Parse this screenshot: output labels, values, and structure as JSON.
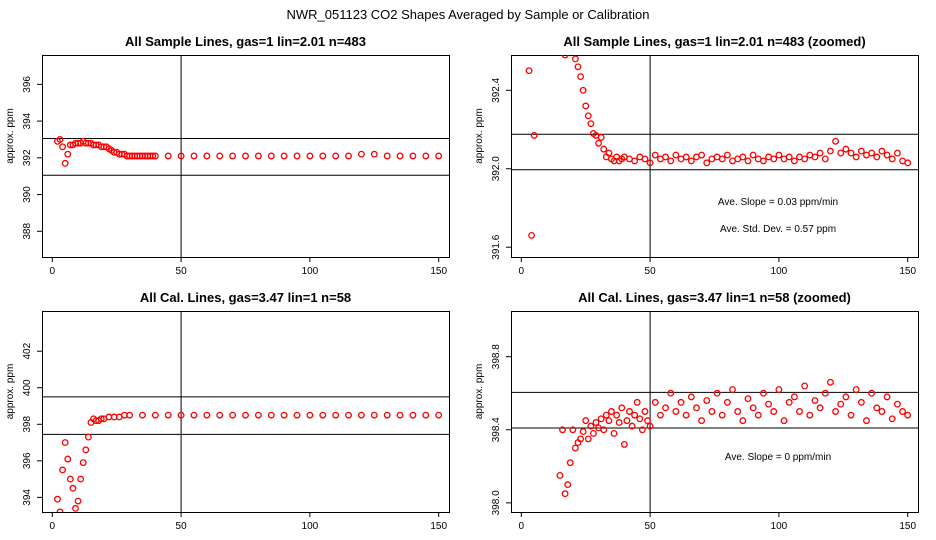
{
  "figure_title": "NWR_051123  CO2 Shapes Averaged by Sample or Calibration",
  "chart_data": [
    {
      "type": "scatter",
      "title": "All Sample Lines, gas=1 lin=2.01 n=483",
      "xlabel": "",
      "ylabel": "approx. ppm",
      "xlim": [
        -4,
        154
      ],
      "ylim": [
        386.6,
        397.6
      ],
      "xticks": [
        0,
        50,
        100,
        150
      ],
      "yticks": [
        388,
        390,
        392,
        394,
        396
      ],
      "vline": 50,
      "hlines": [
        391.05,
        393.05
      ],
      "annotations": [],
      "series": [
        {
          "color": "#ff0000",
          "x": [
            2,
            3,
            4,
            5,
            6,
            7,
            8,
            9,
            10,
            11,
            12,
            13,
            14,
            15,
            16,
            17,
            18,
            19,
            20,
            21,
            22,
            23,
            24,
            25,
            26,
            27,
            28,
            29,
            30,
            31,
            32,
            33,
            34,
            35,
            36,
            37,
            38,
            39,
            40,
            45,
            50,
            55,
            60,
            65,
            70,
            75,
            80,
            85,
            90,
            95,
            100,
            105,
            110,
            115,
            120,
            125,
            130,
            135,
            140,
            145,
            150
          ],
          "y": [
            392.9,
            393.0,
            392.6,
            391.7,
            392.2,
            392.7,
            392.7,
            392.8,
            392.8,
            392.8,
            392.9,
            392.8,
            392.8,
            392.8,
            392.7,
            392.7,
            392.7,
            392.6,
            392.6,
            392.6,
            392.5,
            392.4,
            392.3,
            392.3,
            392.2,
            392.2,
            392.2,
            392.1,
            392.1,
            392.1,
            392.1,
            392.1,
            392.1,
            392.1,
            392.1,
            392.1,
            392.1,
            392.1,
            392.1,
            392.1,
            392.1,
            392.1,
            392.1,
            392.1,
            392.1,
            392.1,
            392.1,
            392.1,
            392.1,
            392.1,
            392.1,
            392.1,
            392.1,
            392.1,
            392.2,
            392.2,
            392.1,
            392.1,
            392.1,
            392.1,
            392.1
          ]
        }
      ]
    },
    {
      "type": "scatter",
      "title": "All Sample Lines, gas=1 lin=2.01 n=483 (zoomed)",
      "xlabel": "",
      "ylabel": "approx. ppm",
      "xlim": [
        -4,
        154
      ],
      "ylim": [
        391.55,
        392.58
      ],
      "xticks": [
        0,
        50,
        100,
        150
      ],
      "yticks": [
        391.6,
        392.0,
        392.4
      ],
      "vline": 50,
      "hlines": [
        391.995,
        392.176
      ],
      "annotations": [
        "Ave. Slope =  0.03  ppm/min",
        "Ave. Std. Dev. =  0.57  ppm"
      ],
      "series": [
        {
          "color": "#ff0000",
          "x": [
            3,
            4,
            5,
            17,
            21,
            22,
            23,
            24,
            25,
            26,
            27,
            28,
            29,
            30,
            31,
            32,
            33,
            34,
            35,
            36,
            37,
            38,
            39,
            40,
            42,
            44,
            46,
            48,
            50,
            52,
            54,
            56,
            58,
            60,
            62,
            64,
            66,
            68,
            70,
            72,
            74,
            76,
            78,
            80,
            82,
            84,
            86,
            88,
            90,
            92,
            94,
            96,
            98,
            100,
            102,
            104,
            106,
            108,
            110,
            112,
            114,
            116,
            118,
            120,
            122,
            124,
            126,
            128,
            130,
            132,
            134,
            136,
            138,
            140,
            142,
            144,
            146,
            148,
            150
          ],
          "y": [
            392.5,
            391.66,
            392.17,
            392.58,
            392.56,
            392.52,
            392.47,
            392.4,
            392.32,
            392.27,
            392.23,
            392.18,
            392.17,
            392.13,
            392.16,
            392.1,
            392.06,
            392.08,
            392.05,
            392.04,
            392.06,
            392.04,
            392.05,
            392.06,
            392.05,
            392.04,
            392.06,
            392.05,
            392.03,
            392.07,
            392.05,
            392.06,
            392.04,
            392.07,
            392.05,
            392.06,
            392.04,
            392.06,
            392.07,
            392.03,
            392.05,
            392.06,
            392.05,
            392.07,
            392.04,
            392.05,
            392.06,
            392.04,
            392.07,
            392.05,
            392.04,
            392.06,
            392.05,
            392.07,
            392.05,
            392.06,
            392.04,
            392.06,
            392.05,
            392.07,
            392.06,
            392.08,
            392.05,
            392.09,
            392.14,
            392.08,
            392.1,
            392.08,
            392.06,
            392.09,
            392.07,
            392.08,
            392.06,
            392.09,
            392.07,
            392.05,
            392.08,
            392.04,
            392.03
          ]
        }
      ]
    },
    {
      "type": "scatter",
      "title": "All Cal. Lines, gas=3.47 lin=1 n=58",
      "xlabel": "",
      "ylabel": "approx. ppm",
      "xlim": [
        -4,
        154
      ],
      "ylim": [
        393.2,
        404.2
      ],
      "xticks": [
        0,
        50,
        100,
        150
      ],
      "yticks": [
        394,
        396,
        398,
        400,
        402
      ],
      "vline": 50,
      "hlines": [
        397.45,
        399.5
      ],
      "annotations": [],
      "series": [
        {
          "color": "#ff0000",
          "x": [
            2,
            3,
            4,
            5,
            6,
            7,
            8,
            9,
            10,
            11,
            12,
            13,
            14,
            15,
            16,
            17,
            18,
            19,
            20,
            22,
            24,
            26,
            28,
            30,
            35,
            40,
            45,
            50,
            55,
            60,
            65,
            70,
            75,
            80,
            85,
            90,
            95,
            100,
            105,
            110,
            115,
            120,
            125,
            130,
            135,
            140,
            145,
            150
          ],
          "y": [
            393.9,
            393.2,
            395.5,
            397.0,
            396.1,
            395.0,
            394.5,
            393.4,
            393.8,
            395.0,
            395.9,
            396.6,
            397.3,
            398.1,
            398.3,
            398.2,
            398.2,
            398.3,
            398.3,
            398.4,
            398.4,
            398.4,
            398.5,
            398.5,
            398.5,
            398.5,
            398.5,
            398.5,
            398.5,
            398.5,
            398.5,
            398.5,
            398.5,
            398.5,
            398.5,
            398.5,
            398.5,
            398.5,
            398.5,
            398.5,
            398.5,
            398.5,
            398.5,
            398.5,
            398.5,
            398.5,
            398.5,
            398.5
          ]
        }
      ]
    },
    {
      "type": "scatter",
      "title": "All Cal. Lines, gas=3.47 lin=1 n=58 (zoomed)",
      "xlabel": "",
      "ylabel": "approx. ppm",
      "xlim": [
        -4,
        154
      ],
      "ylim": [
        397.95,
        399.05
      ],
      "xticks": [
        0,
        50,
        100,
        150
      ],
      "yticks": [
        398.0,
        398.4,
        398.8
      ],
      "vline": 50,
      "hlines": [
        398.41,
        398.605
      ],
      "annotations": [
        "Ave. Slope =  0  ppm/min"
      ],
      "series": [
        {
          "color": "#ff0000",
          "x": [
            15,
            16,
            17,
            18,
            19,
            20,
            21,
            22,
            23,
            24,
            25,
            26,
            27,
            28,
            29,
            30,
            31,
            32,
            33,
            34,
            35,
            36,
            37,
            38,
            39,
            40,
            41,
            42,
            43,
            44,
            45,
            46,
            47,
            48,
            49,
            50,
            52,
            54,
            56,
            58,
            60,
            62,
            64,
            66,
            68,
            70,
            72,
            74,
            76,
            78,
            80,
            82,
            84,
            86,
            88,
            90,
            92,
            94,
            96,
            98,
            100,
            102,
            104,
            106,
            108,
            110,
            112,
            114,
            116,
            118,
            120,
            122,
            124,
            126,
            128,
            130,
            132,
            134,
            136,
            138,
            140,
            142,
            144,
            146,
            148,
            150
          ],
          "y": [
            398.15,
            398.4,
            398.05,
            398.1,
            398.22,
            398.4,
            398.3,
            398.33,
            398.35,
            398.39,
            398.45,
            398.35,
            398.42,
            398.38,
            398.44,
            398.41,
            398.46,
            398.4,
            398.48,
            398.45,
            398.5,
            398.38,
            398.48,
            398.44,
            398.52,
            398.32,
            398.45,
            398.5,
            398.42,
            398.48,
            398.55,
            398.46,
            398.4,
            398.5,
            398.45,
            398.42,
            398.55,
            398.48,
            398.52,
            398.6,
            398.5,
            398.55,
            398.48,
            398.58,
            398.52,
            398.45,
            398.56,
            398.5,
            398.6,
            398.48,
            398.55,
            398.62,
            398.5,
            398.45,
            398.57,
            398.52,
            398.48,
            398.6,
            398.54,
            398.5,
            398.62,
            398.45,
            398.55,
            398.58,
            398.5,
            398.64,
            398.48,
            398.56,
            398.52,
            398.6,
            398.66,
            398.5,
            398.54,
            398.58,
            398.48,
            398.62,
            398.55,
            398.45,
            398.6,
            398.52,
            398.5,
            398.58,
            398.46,
            398.54,
            398.5,
            398.48
          ]
        }
      ]
    }
  ]
}
